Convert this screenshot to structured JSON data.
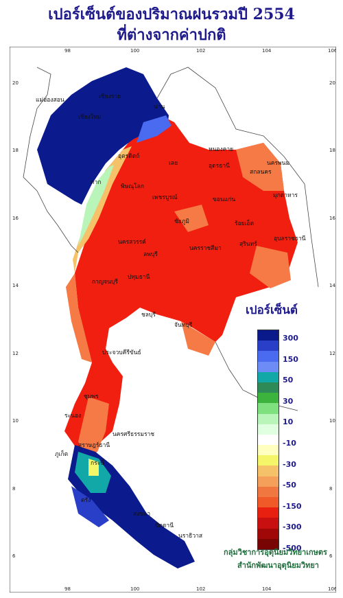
{
  "title": {
    "line1": "เปอร์เซ็นต์ของปริมาณฝนรวมปี  2554",
    "line2": "ที่ต่างจากค่าปกติ"
  },
  "axes": {
    "lon_ticks": [
      "98",
      "100",
      "102",
      "104",
      "106"
    ],
    "lat_ticks": [
      "20",
      "18",
      "16",
      "14",
      "12",
      "10",
      "8",
      "6"
    ]
  },
  "provinces": [
    "เชียงราย",
    "เชียงใหม่",
    "แม่ฮ่องสอน",
    "น่าน",
    "อุตรดิตถ์",
    "หนองคาย",
    "อุดรธานี",
    "นครพนม",
    "สกลนคร",
    "มุกดาหาร",
    "เลย",
    "ขอนแก่น",
    "พิษณุโลก",
    "ตาก",
    "เพชรบูรณ์",
    "นครสวรรค์",
    "ชัยภูมิ",
    "ร้อยเอ็ด",
    "อุบลราชธานี",
    "สุรินทร์",
    "ลพบุรี",
    "นครราชสีมา",
    "กาญจนบุรี",
    "ปทุมธานี",
    "ชลบุรี",
    "จันทบุรี",
    "ประจวบคีรีขันธ์",
    "ชุมพร",
    "ระนอง",
    "สุราษฎร์ธานี",
    "นครศรีธรรมราช",
    "ภูเก็ต",
    "กระบี่",
    "ตรัง",
    "สงขลา",
    "ปัตตานี",
    "นราธิวาส"
  ],
  "legend": {
    "title": "เปอร์เซ็นต์",
    "labels": [
      "300",
      "150",
      "50",
      "30",
      "10",
      "-10",
      "-30",
      "-50",
      "-150",
      "-300",
      "-500"
    ],
    "colors": [
      "#0a1a8a",
      "#2a3fc8",
      "#4a6af0",
      "#6d8cf5",
      "#13a8a8",
      "#2e8b57",
      "#3cb33c",
      "#7ee07e",
      "#b9f5b9",
      "#e0ffe0",
      "#ffffff",
      "#ffffc0",
      "#f5f56a",
      "#f5c26a",
      "#f5a05a",
      "#f07840",
      "#f05a28",
      "#e82010",
      "#c81010",
      "#a00808",
      "#780404"
    ]
  },
  "credits": {
    "line1": "กลุ่มวิชาการอุตุนิยมวิทยาเกษตร",
    "line2": "สำนักพัฒนาอุตุนิยมวิทยา"
  }
}
